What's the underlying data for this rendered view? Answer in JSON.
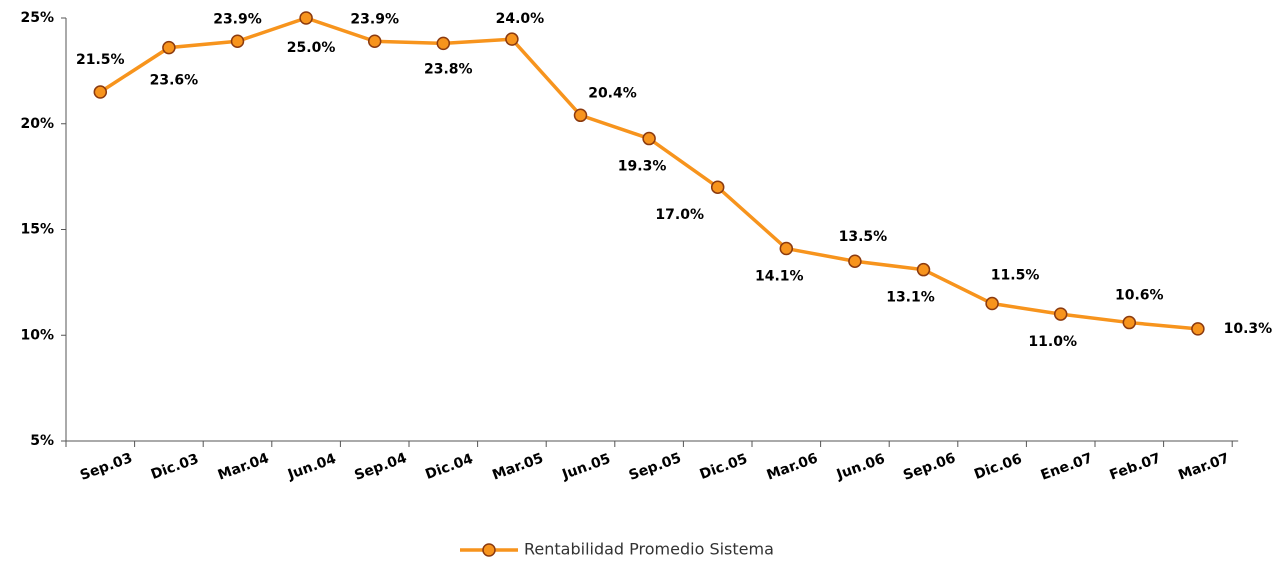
{
  "chart_data": {
    "type": "line",
    "categories": [
      "Sep.03",
      "Dic.03",
      "Mar.04",
      "Jun.04",
      "Sep.04",
      "Dic.04",
      "Mar.05",
      "Jun.05",
      "Sep.05",
      "Dic.05",
      "Mar.06",
      "Jun.06",
      "Sep.06",
      "Dic.06",
      "Ene.07",
      "Feb.07",
      "Mar.07"
    ],
    "series": [
      {
        "name": "Rentabilidad Promedio Sistema",
        "color": "#f7941d",
        "values": [
          21.5,
          23.6,
          23.9,
          25.0,
          23.9,
          23.8,
          24.0,
          20.4,
          19.3,
          17.0,
          14.1,
          13.5,
          13.1,
          11.5,
          11.0,
          10.6,
          10.3
        ],
        "value_labels": [
          "21.5%",
          "23.6%",
          "23.9%",
          "25.0%",
          "23.9%",
          "23.8%",
          "24.0%",
          "20.4%",
          "19.3%",
          "17.0%",
          "14.1%",
          "13.5%",
          "13.1%",
          "11.5%",
          "11.0%",
          "10.6%",
          "10.3%"
        ]
      }
    ],
    "ylim": [
      5,
      25
    ],
    "yticks": [
      {
        "value": 5,
        "label": "5%"
      },
      {
        "value": 10,
        "label": "10%"
      },
      {
        "value": 15,
        "label": "15%"
      },
      {
        "value": 20,
        "label": "20%"
      },
      {
        "value": 25,
        "label": "25%"
      }
    ],
    "grid": false,
    "legend": "bottom"
  }
}
